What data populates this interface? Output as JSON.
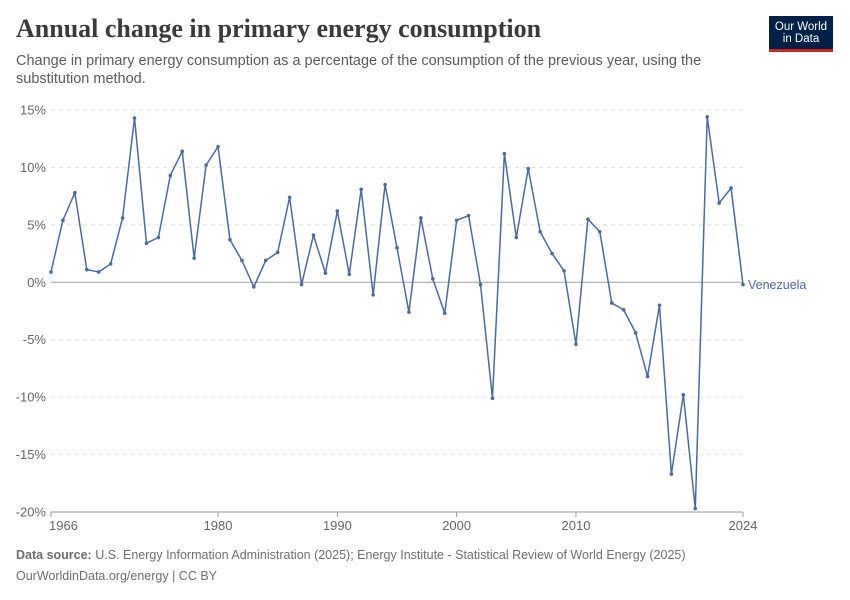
{
  "header": {
    "title": "Annual change in primary energy consumption",
    "subtitle": "Change in primary energy consumption as a percentage of the consumption of the previous year, using the substitution method.",
    "logo_line1": "Our World",
    "logo_line2": "in Data"
  },
  "footer": {
    "source_label": "Data source:",
    "source_text": "U.S. Energy Information Administration (2025); Energy Institute - Statistical Review of World Energy (2025)",
    "url_text": "OurWorldinData.org/energy | CC BY"
  },
  "colors": {
    "series": "#4c6a9c",
    "grid": "#dddddd",
    "zero_line": "#a0a0a0"
  },
  "chart_data": {
    "type": "line",
    "title": "Annual change in primary energy consumption",
    "xlabel": "",
    "ylabel": "",
    "xlim": [
      1966,
      2024
    ],
    "ylim": [
      -20,
      15
    ],
    "x_ticks": [
      1966,
      1980,
      1990,
      2000,
      2010,
      2024
    ],
    "y_ticks": [
      {
        "value": 15,
        "label": "15%"
      },
      {
        "value": 10,
        "label": "10%"
      },
      {
        "value": 5,
        "label": "5%"
      },
      {
        "value": 0,
        "label": "0%"
      },
      {
        "value": -5,
        "label": "-5%"
      },
      {
        "value": -10,
        "label": "-10%"
      },
      {
        "value": -15,
        "label": "-15%"
      },
      {
        "value": -20,
        "label": "-20%"
      }
    ],
    "grid": "horizontal dashed",
    "series": [
      {
        "name": "Venezuela",
        "x": [
          1966,
          1967,
          1968,
          1969,
          1970,
          1971,
          1972,
          1973,
          1974,
          1975,
          1976,
          1977,
          1978,
          1979,
          1980,
          1981,
          1982,
          1983,
          1984,
          1985,
          1986,
          1987,
          1988,
          1989,
          1990,
          1991,
          1992,
          1993,
          1994,
          1995,
          1996,
          1997,
          1998,
          1999,
          2000,
          2001,
          2002,
          2003,
          2004,
          2005,
          2006,
          2007,
          2008,
          2009,
          2010,
          2011,
          2012,
          2013,
          2014,
          2015,
          2016,
          2017,
          2018,
          2019,
          2020,
          2021,
          2022,
          2023,
          2024
        ],
        "y": [
          0.9,
          5.4,
          7.8,
          1.1,
          0.9,
          1.6,
          5.6,
          14.3,
          3.4,
          3.9,
          9.3,
          11.4,
          2.1,
          10.2,
          11.8,
          3.7,
          1.9,
          -0.4,
          1.9,
          2.6,
          7.4,
          -0.2,
          4.1,
          0.8,
          6.2,
          0.7,
          8.1,
          -1.1,
          8.5,
          3.0,
          -2.6,
          5.6,
          0.3,
          -2.7,
          5.4,
          5.8,
          -0.2,
          -10.1,
          11.2,
          3.9,
          9.9,
          4.4,
          2.5,
          1.0,
          -5.4,
          5.5,
          4.4,
          -1.8,
          -2.4,
          -4.4,
          -8.2,
          -2.0,
          -16.7,
          -9.8,
          -19.7,
          14.4,
          6.9,
          8.2,
          -0.2
        ]
      }
    ]
  }
}
